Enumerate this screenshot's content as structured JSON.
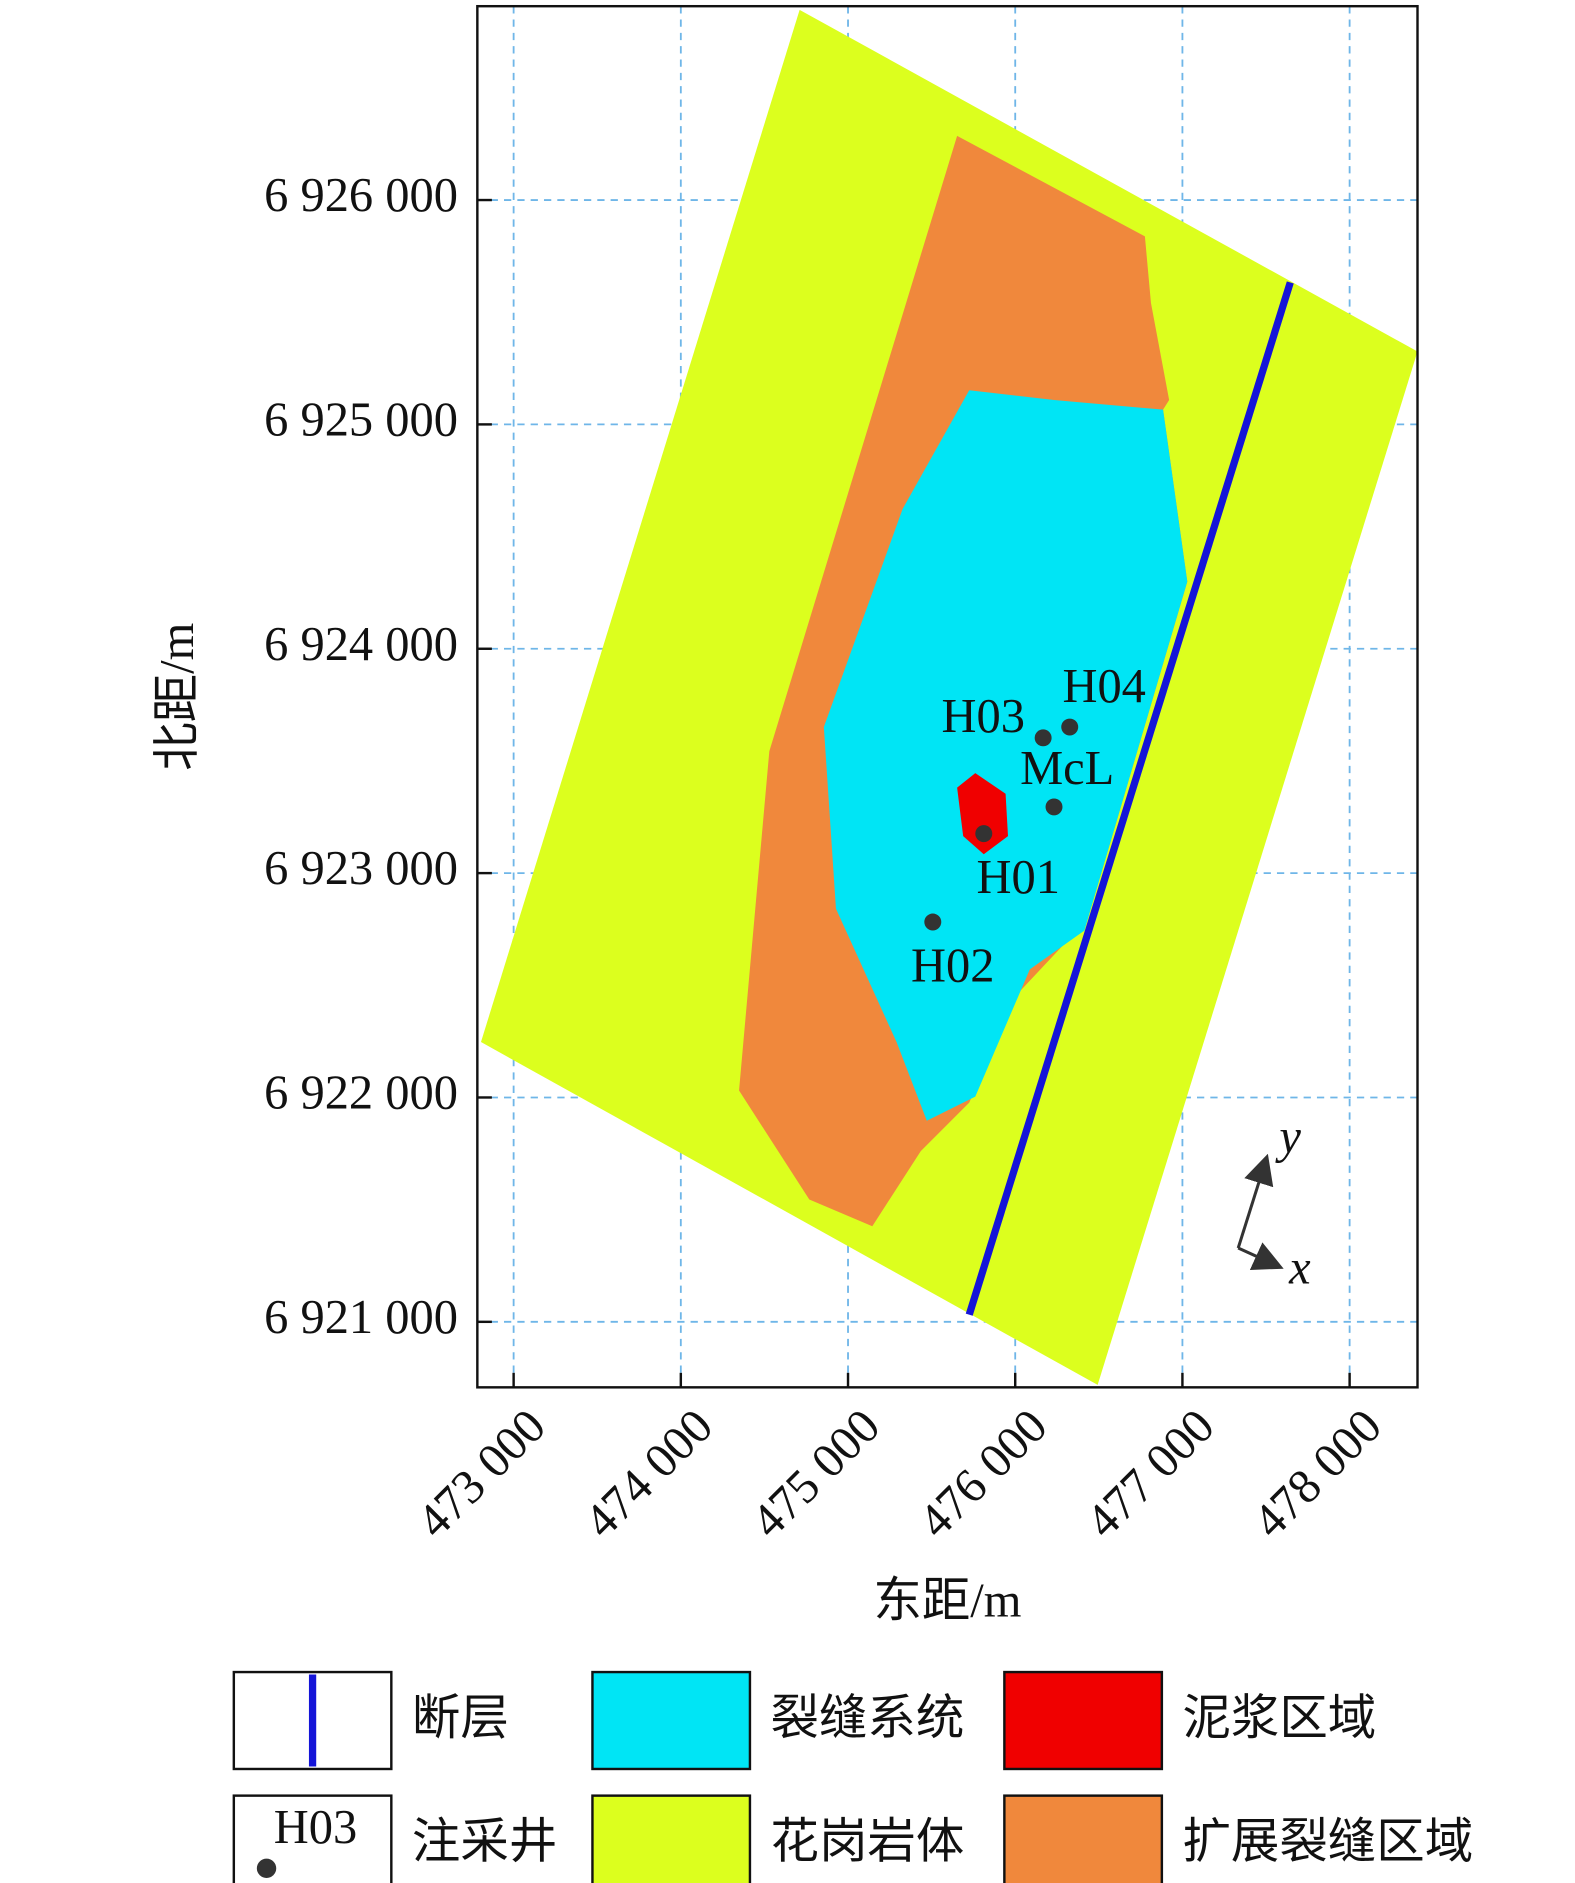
{
  "chart_data": {
    "type": "scatter",
    "x_label": "东距/m",
    "y_label": "北距/m",
    "xlim": [
      472783,
      478406
    ],
    "ylim": [
      6920708,
      6926864
    ],
    "xticks": [
      {
        "value": 473000,
        "label": "473 000"
      },
      {
        "value": 474000,
        "label": "474 000"
      },
      {
        "value": 475000,
        "label": "475 000"
      },
      {
        "value": 476000,
        "label": "476 000"
      },
      {
        "value": 477000,
        "label": "477 000"
      },
      {
        "value": 478000,
        "label": "478 000"
      }
    ],
    "yticks": [
      {
        "value": 6921000,
        "label": "6 921 000"
      },
      {
        "value": 6922000,
        "label": "6 922 000"
      },
      {
        "value": 6923000,
        "label": "6 923 000"
      },
      {
        "value": 6924000,
        "label": "6 924 000"
      },
      {
        "value": 6925000,
        "label": "6 925 000"
      },
      {
        "value": 6926000,
        "label": "6 926 000"
      }
    ],
    "grid": true,
    "series": [
      {
        "name": "注采井",
        "color": "#333333",
        "labels": [
          "H03",
          "H04",
          "McL",
          "H01",
          "H02"
        ],
        "x": [
          476167,
          476326,
          476232,
          475812,
          475507
        ],
        "y": [
          6923603,
          6923651,
          6923295,
          6923176,
          6922782
        ]
      }
    ],
    "legend": [
      {
        "name": "断层",
        "color": "#1414d8"
      },
      {
        "name": "裂缝系统",
        "color": "#00e5f5"
      },
      {
        "name": "泥浆区域",
        "color": "#f00000"
      },
      {
        "name": "花岗岩体",
        "color": "#dcff1e"
      },
      {
        "name": "扩展裂缝区域",
        "color": "#f0883c"
      }
    ],
    "legend_well_sample": "H03",
    "axes_indicator": [
      "y",
      "x"
    ]
  }
}
